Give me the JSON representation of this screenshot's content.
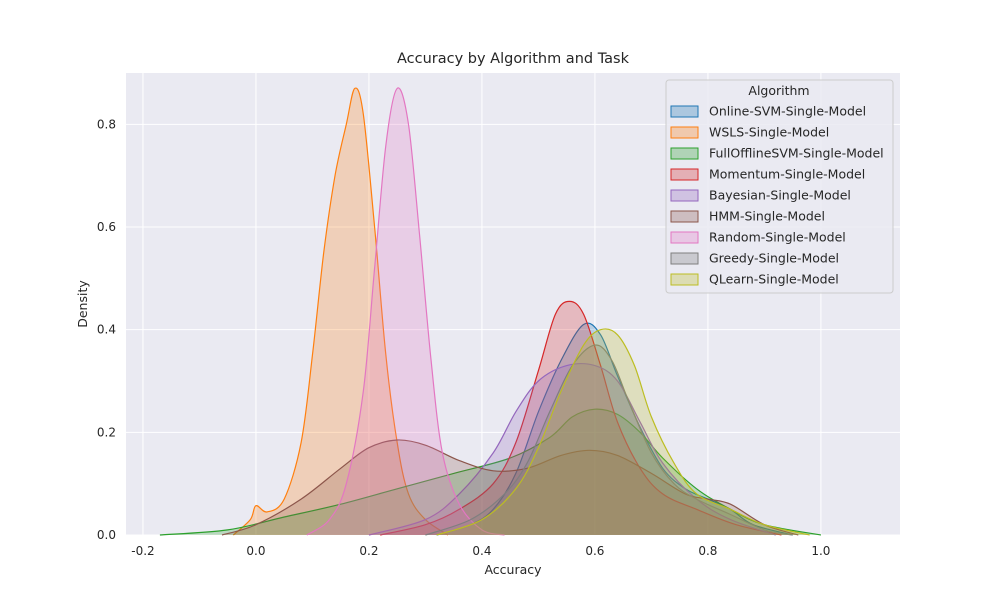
{
  "chart_data": {
    "type": "area",
    "subtype": "kde",
    "title": "Accuracy by Algorithm and Task",
    "xlabel": "Accuracy",
    "ylabel": "Density",
    "xlim": [
      -0.23,
      1.14
    ],
    "ylim": [
      0,
      0.9
    ],
    "xticks": [
      -0.2,
      0.0,
      0.2,
      0.4,
      0.6,
      0.8,
      1.0
    ],
    "xtick_labels": [
      "-0.2",
      "0.0",
      "0.2",
      "0.4",
      "0.6",
      "0.8",
      "1.0"
    ],
    "yticks": [
      0.0,
      0.2,
      0.4,
      0.6,
      0.8
    ],
    "ytick_labels": [
      "0.0",
      "0.2",
      "0.4",
      "0.6",
      "0.8"
    ],
    "grid": true,
    "background": "#eaeaf2",
    "legend": {
      "title": "Algorithm",
      "position": "top-right"
    },
    "series": [
      {
        "name": "Online-SVM-Single-Model",
        "color": "#1f77b4",
        "points": [
          [
            0.32,
            0
          ],
          [
            0.38,
            0.02
          ],
          [
            0.42,
            0.05
          ],
          [
            0.46,
            0.12
          ],
          [
            0.5,
            0.24
          ],
          [
            0.54,
            0.34
          ],
          [
            0.58,
            0.41
          ],
          [
            0.61,
            0.39
          ],
          [
            0.64,
            0.31
          ],
          [
            0.68,
            0.21
          ],
          [
            0.72,
            0.13
          ],
          [
            0.76,
            0.09
          ],
          [
            0.8,
            0.07
          ],
          [
            0.84,
            0.05
          ],
          [
            0.88,
            0.02
          ],
          [
            0.95,
            0
          ]
        ]
      },
      {
        "name": "WSLS-Single-Model",
        "color": "#ff7f0e",
        "points": [
          [
            -0.04,
            0
          ],
          [
            -0.01,
            0.03
          ],
          [
            0.0,
            0.057
          ],
          [
            0.02,
            0.045
          ],
          [
            0.05,
            0.07
          ],
          [
            0.08,
            0.18
          ],
          [
            0.1,
            0.35
          ],
          [
            0.12,
            0.55
          ],
          [
            0.14,
            0.7
          ],
          [
            0.16,
            0.8
          ],
          [
            0.175,
            0.87
          ],
          [
            0.19,
            0.82
          ],
          [
            0.21,
            0.6
          ],
          [
            0.23,
            0.35
          ],
          [
            0.25,
            0.18
          ],
          [
            0.27,
            0.08
          ],
          [
            0.3,
            0.03
          ],
          [
            0.34,
            0
          ]
        ]
      },
      {
        "name": "FullOfflineSVM-Single-Model",
        "color": "#2ca02c",
        "points": [
          [
            -0.17,
            0
          ],
          [
            -0.05,
            0.01
          ],
          [
            0.05,
            0.035
          ],
          [
            0.15,
            0.06
          ],
          [
            0.25,
            0.09
          ],
          [
            0.35,
            0.12
          ],
          [
            0.45,
            0.15
          ],
          [
            0.52,
            0.19
          ],
          [
            0.56,
            0.23
          ],
          [
            0.6,
            0.245
          ],
          [
            0.64,
            0.235
          ],
          [
            0.68,
            0.2
          ],
          [
            0.72,
            0.15
          ],
          [
            0.78,
            0.09
          ],
          [
            0.84,
            0.05
          ],
          [
            0.9,
            0.02
          ],
          [
            1.0,
            0
          ]
        ]
      },
      {
        "name": "Momentum-Single-Model",
        "color": "#d62728",
        "points": [
          [
            0.22,
            0
          ],
          [
            0.3,
            0.02
          ],
          [
            0.36,
            0.05
          ],
          [
            0.42,
            0.1
          ],
          [
            0.46,
            0.18
          ],
          [
            0.5,
            0.32
          ],
          [
            0.53,
            0.43
          ],
          [
            0.555,
            0.455
          ],
          [
            0.58,
            0.43
          ],
          [
            0.61,
            0.33
          ],
          [
            0.64,
            0.22
          ],
          [
            0.68,
            0.13
          ],
          [
            0.72,
            0.08
          ],
          [
            0.78,
            0.05
          ],
          [
            0.85,
            0.02
          ],
          [
            0.93,
            0
          ]
        ]
      },
      {
        "name": "Bayesian-Single-Model",
        "color": "#9467bd",
        "points": [
          [
            0.2,
            0
          ],
          [
            0.3,
            0.03
          ],
          [
            0.36,
            0.08
          ],
          [
            0.42,
            0.16
          ],
          [
            0.46,
            0.24
          ],
          [
            0.5,
            0.3
          ],
          [
            0.55,
            0.33
          ],
          [
            0.6,
            0.33
          ],
          [
            0.64,
            0.3
          ],
          [
            0.68,
            0.22
          ],
          [
            0.72,
            0.14
          ],
          [
            0.78,
            0.07
          ],
          [
            0.84,
            0.03
          ],
          [
            0.92,
            0
          ]
        ]
      },
      {
        "name": "HMM-Single-Model",
        "color": "#8c564b",
        "points": [
          [
            -0.06,
            0
          ],
          [
            0.0,
            0.02
          ],
          [
            0.08,
            0.07
          ],
          [
            0.15,
            0.13
          ],
          [
            0.2,
            0.17
          ],
          [
            0.25,
            0.185
          ],
          [
            0.3,
            0.175
          ],
          [
            0.36,
            0.145
          ],
          [
            0.42,
            0.125
          ],
          [
            0.48,
            0.13
          ],
          [
            0.54,
            0.155
          ],
          [
            0.59,
            0.165
          ],
          [
            0.64,
            0.155
          ],
          [
            0.7,
            0.12
          ],
          [
            0.76,
            0.08
          ],
          [
            0.8,
            0.07
          ],
          [
            0.84,
            0.06
          ],
          [
            0.9,
            0.02
          ],
          [
            0.96,
            0
          ]
        ]
      },
      {
        "name": "Random-Single-Model",
        "color": "#e377c2",
        "points": [
          [
            0.09,
            0
          ],
          [
            0.13,
            0.03
          ],
          [
            0.16,
            0.1
          ],
          [
            0.19,
            0.28
          ],
          [
            0.21,
            0.52
          ],
          [
            0.23,
            0.76
          ],
          [
            0.25,
            0.87
          ],
          [
            0.27,
            0.8
          ],
          [
            0.29,
            0.58
          ],
          [
            0.31,
            0.34
          ],
          [
            0.33,
            0.16
          ],
          [
            0.36,
            0.06
          ],
          [
            0.4,
            0.01
          ],
          [
            0.44,
            0
          ]
        ]
      },
      {
        "name": "Greedy-Single-Model",
        "color": "#7f7f7f",
        "points": [
          [
            0.3,
            0
          ],
          [
            0.38,
            0.03
          ],
          [
            0.44,
            0.08
          ],
          [
            0.48,
            0.14
          ],
          [
            0.52,
            0.24
          ],
          [
            0.56,
            0.33
          ],
          [
            0.6,
            0.37
          ],
          [
            0.63,
            0.34
          ],
          [
            0.66,
            0.26
          ],
          [
            0.7,
            0.16
          ],
          [
            0.74,
            0.1
          ],
          [
            0.78,
            0.07
          ],
          [
            0.84,
            0.04
          ],
          [
            0.9,
            0.01
          ],
          [
            0.95,
            0
          ]
        ]
      },
      {
        "name": "QLearn-Single-Model",
        "color": "#bcbd22",
        "points": [
          [
            0.32,
            0
          ],
          [
            0.4,
            0.03
          ],
          [
            0.46,
            0.09
          ],
          [
            0.5,
            0.17
          ],
          [
            0.54,
            0.28
          ],
          [
            0.58,
            0.37
          ],
          [
            0.61,
            0.4
          ],
          [
            0.64,
            0.39
          ],
          [
            0.67,
            0.33
          ],
          [
            0.7,
            0.23
          ],
          [
            0.74,
            0.14
          ],
          [
            0.78,
            0.08
          ],
          [
            0.84,
            0.05
          ],
          [
            0.9,
            0.02
          ],
          [
            0.98,
            0
          ]
        ]
      }
    ]
  }
}
